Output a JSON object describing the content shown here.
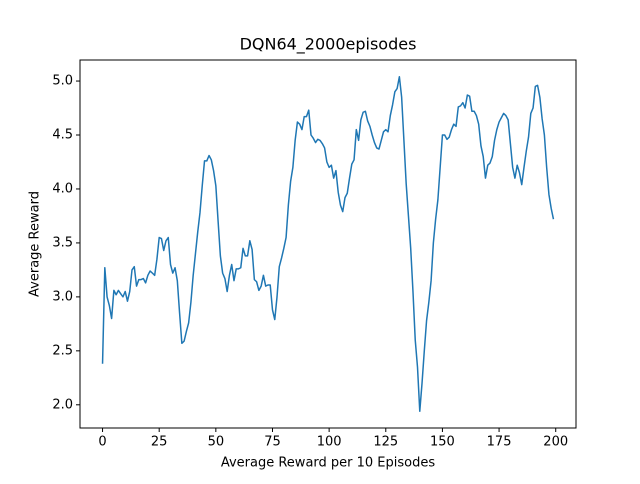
{
  "chart_data": {
    "type": "line",
    "title": "DQN64_2000episodes",
    "xlabel": "Average Reward per 10 Episodes",
    "ylabel": "Average Reward",
    "x": [
      0,
      1,
      2,
      3,
      4,
      5,
      6,
      7,
      8,
      9,
      10,
      11,
      12,
      13,
      14,
      15,
      16,
      17,
      18,
      19,
      20,
      21,
      22,
      23,
      24,
      25,
      26,
      27,
      28,
      29,
      30,
      31,
      32,
      33,
      34,
      35,
      36,
      37,
      38,
      39,
      40,
      41,
      42,
      43,
      44,
      45,
      46,
      47,
      48,
      49,
      50,
      51,
      52,
      53,
      54,
      55,
      56,
      57,
      58,
      59,
      60,
      61,
      62,
      63,
      64,
      65,
      66,
      67,
      68,
      69,
      70,
      71,
      72,
      73,
      74,
      75,
      76,
      77,
      78,
      79,
      80,
      81,
      82,
      83,
      84,
      85,
      86,
      87,
      88,
      89,
      90,
      91,
      92,
      93,
      94,
      95,
      96,
      97,
      98,
      99,
      100,
      101,
      102,
      103,
      104,
      105,
      106,
      107,
      108,
      109,
      110,
      111,
      112,
      113,
      114,
      115,
      116,
      117,
      118,
      119,
      120,
      121,
      122,
      123,
      124,
      125,
      126,
      127,
      128,
      129,
      130,
      131,
      132,
      133,
      134,
      135,
      136,
      137,
      138,
      139,
      140,
      141,
      142,
      143,
      144,
      145,
      146,
      147,
      148,
      149,
      150,
      151,
      152,
      153,
      154,
      155,
      156,
      157,
      158,
      159,
      160,
      161,
      162,
      163,
      164,
      165,
      166,
      167,
      168,
      169,
      170,
      171,
      172,
      173,
      174,
      175,
      176,
      177,
      178,
      179,
      180,
      181,
      182,
      183,
      184,
      185,
      186,
      187,
      188,
      189,
      190,
      191,
      192,
      193,
      194,
      195,
      196,
      197,
      198,
      199
    ],
    "values": [
      2.38,
      3.27,
      3.0,
      2.92,
      2.8,
      3.06,
      3.02,
      3.06,
      3.03,
      3.0,
      3.05,
      2.96,
      3.05,
      3.25,
      3.28,
      3.1,
      3.16,
      3.16,
      3.17,
      3.13,
      3.2,
      3.24,
      3.22,
      3.2,
      3.35,
      3.55,
      3.54,
      3.43,
      3.52,
      3.55,
      3.3,
      3.22,
      3.27,
      3.15,
      2.85,
      2.57,
      2.59,
      2.68,
      2.76,
      2.95,
      3.2,
      3.4,
      3.6,
      3.78,
      4.03,
      4.26,
      4.26,
      4.31,
      4.27,
      4.17,
      4.03,
      3.7,
      3.38,
      3.22,
      3.17,
      3.05,
      3.2,
      3.3,
      3.15,
      3.26,
      3.26,
      3.27,
      3.45,
      3.38,
      3.38,
      3.52,
      3.44,
      3.16,
      3.14,
      3.06,
      3.1,
      3.2,
      3.1,
      3.11,
      3.11,
      2.88,
      2.79,
      3.0,
      3.28,
      3.36,
      3.45,
      3.55,
      3.85,
      4.07,
      4.2,
      4.45,
      4.62,
      4.6,
      4.55,
      4.67,
      4.67,
      4.73,
      4.5,
      4.47,
      4.43,
      4.46,
      4.45,
      4.42,
      4.38,
      4.25,
      4.2,
      4.22,
      4.1,
      4.17,
      3.97,
      3.85,
      3.79,
      3.92,
      3.96,
      4.1,
      4.23,
      4.27,
      4.55,
      4.45,
      4.64,
      4.71,
      4.72,
      4.63,
      4.58,
      4.5,
      4.43,
      4.38,
      4.37,
      4.45,
      4.53,
      4.55,
      4.53,
      4.68,
      4.78,
      4.9,
      4.93,
      5.04,
      4.85,
      4.45,
      4.05,
      3.75,
      3.45,
      3.05,
      2.6,
      2.35,
      1.94,
      2.2,
      2.5,
      2.78,
      2.95,
      3.15,
      3.5,
      3.72,
      3.9,
      4.2,
      4.5,
      4.5,
      4.46,
      4.48,
      4.55,
      4.6,
      4.58,
      4.76,
      4.77,
      4.8,
      4.75,
      4.87,
      4.86,
      4.72,
      4.72,
      4.68,
      4.6,
      4.4,
      4.3,
      4.1,
      4.22,
      4.24,
      4.3,
      4.45,
      4.55,
      4.62,
      4.66,
      4.7,
      4.68,
      4.64,
      4.42,
      4.2,
      4.1,
      4.22,
      4.15,
      4.04,
      4.2,
      4.35,
      4.48,
      4.7,
      4.75,
      4.95,
      4.96,
      4.85,
      4.65,
      4.5,
      4.2,
      3.95,
      3.82,
      3.72
    ],
    "color": "#1f77b4",
    "xlim": [
      -9.95,
      208.95
    ],
    "ylim": [
      1.785,
      5.195
    ],
    "xticks": [
      0,
      25,
      50,
      75,
      100,
      125,
      150,
      175,
      200
    ],
    "yticks": [
      {
        "value": 2,
        "label": "2.0"
      },
      2.5,
      {
        "value": 3,
        "label": "3.0"
      },
      3.5,
      {
        "value": 4,
        "label": "4.0"
      },
      4.5,
      {
        "value": 5,
        "label": "5.0"
      }
    ]
  }
}
